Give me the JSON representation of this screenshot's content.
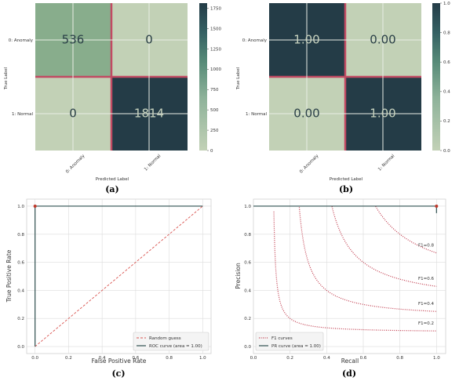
{
  "chart_data": [
    {
      "type": "heatmap",
      "panel_label": "(a)",
      "xlabel": "Predicted Label",
      "ylabel": "True Label",
      "x_categories": [
        "0: Anomaly",
        "1: Normal"
      ],
      "y_categories": [
        "0: Anomaly",
        "1: Normal"
      ],
      "values": [
        [
          536,
          0
        ],
        [
          0,
          1814
        ]
      ],
      "cell_labels": [
        [
          "536",
          "0"
        ],
        [
          "0",
          "1814"
        ]
      ],
      "colorbar": {
        "min": 0,
        "max": 1814,
        "ticks": [
          0,
          250,
          500,
          750,
          1000,
          1250,
          1500,
          1750
        ]
      }
    },
    {
      "type": "heatmap",
      "panel_label": "(b)",
      "xlabel": "Predicted Label",
      "ylabel": "True Label",
      "x_categories": [
        "0: Anomaly",
        "1: Normal"
      ],
      "y_categories": [
        "0: Anomaly",
        "1: Normal"
      ],
      "values": [
        [
          1.0,
          0.0
        ],
        [
          0.0,
          1.0
        ]
      ],
      "cell_labels": [
        [
          "1.00",
          "0.00"
        ],
        [
          "0.00",
          "1.00"
        ]
      ],
      "colorbar": {
        "min": 0,
        "max": 1.0,
        "ticks": [
          "0.0",
          "0.2",
          "0.4",
          "0.6",
          "0.8",
          "1.0"
        ]
      }
    },
    {
      "type": "line",
      "panel_label": "(c)",
      "xlabel": "False Positive Rate",
      "ylabel": "True Positive Rate",
      "xlim": [
        -0.05,
        1.05
      ],
      "ylim": [
        -0.05,
        1.05
      ],
      "xticks": [
        "0.0",
        "0.2",
        "0.4",
        "0.6",
        "0.8",
        "1.0"
      ],
      "yticks": [
        "0.0",
        "0.2",
        "0.4",
        "0.6",
        "0.8",
        "1.0"
      ],
      "grid": true,
      "legend_position": "lower-right",
      "series": [
        {
          "name": "Random guess",
          "x": [
            0,
            1
          ],
          "y": [
            0,
            1
          ],
          "style": "dashed",
          "color": "#d9534f"
        },
        {
          "name": "ROC curve (area = 1.00)",
          "x": [
            0,
            0,
            1
          ],
          "y": [
            0,
            1,
            1
          ],
          "style": "solid",
          "color": "#2f4f4f"
        }
      ],
      "markers": [
        {
          "x": 0,
          "y": 1,
          "color": "#c0392b"
        }
      ]
    },
    {
      "type": "line",
      "panel_label": "(d)",
      "xlabel": "Recall",
      "ylabel": "Precision",
      "xlim": [
        0,
        1.05
      ],
      "ylim": [
        -0.05,
        1.05
      ],
      "xticks": [
        "0.0",
        "0.2",
        "0.4",
        "0.6",
        "0.8",
        "1.0"
      ],
      "yticks": [
        "0.0",
        "0.2",
        "0.4",
        "0.6",
        "0.8",
        "1.0"
      ],
      "grid": true,
      "legend_position": "lower-left",
      "f1_levels": [
        0.2,
        0.4,
        0.6,
        0.8
      ],
      "f1_labels": [
        "F1=0.2",
        "F1=0.4",
        "F1=0.6",
        "F1=0.8"
      ],
      "series": [
        {
          "name": "F1 curves",
          "style": "dotted",
          "color": "#c0394b"
        },
        {
          "name": "PR curve (area = 1.00)",
          "x": [
            0,
            1,
            1
          ],
          "y": [
            1,
            1,
            0.95
          ],
          "style": "solid",
          "color": "#2f4f4f"
        }
      ],
      "markers": [
        {
          "x": 1,
          "y": 1,
          "color": "#c0392b"
        }
      ]
    }
  ],
  "colors": {
    "cmap_low": "#c2d1b6",
    "cmap_mid": "#6f9e82",
    "cmap_high": "#243c47",
    "cell_border": "#c24a63",
    "text_dark": "#2a3f47",
    "text_light": "#c8d3bf"
  }
}
